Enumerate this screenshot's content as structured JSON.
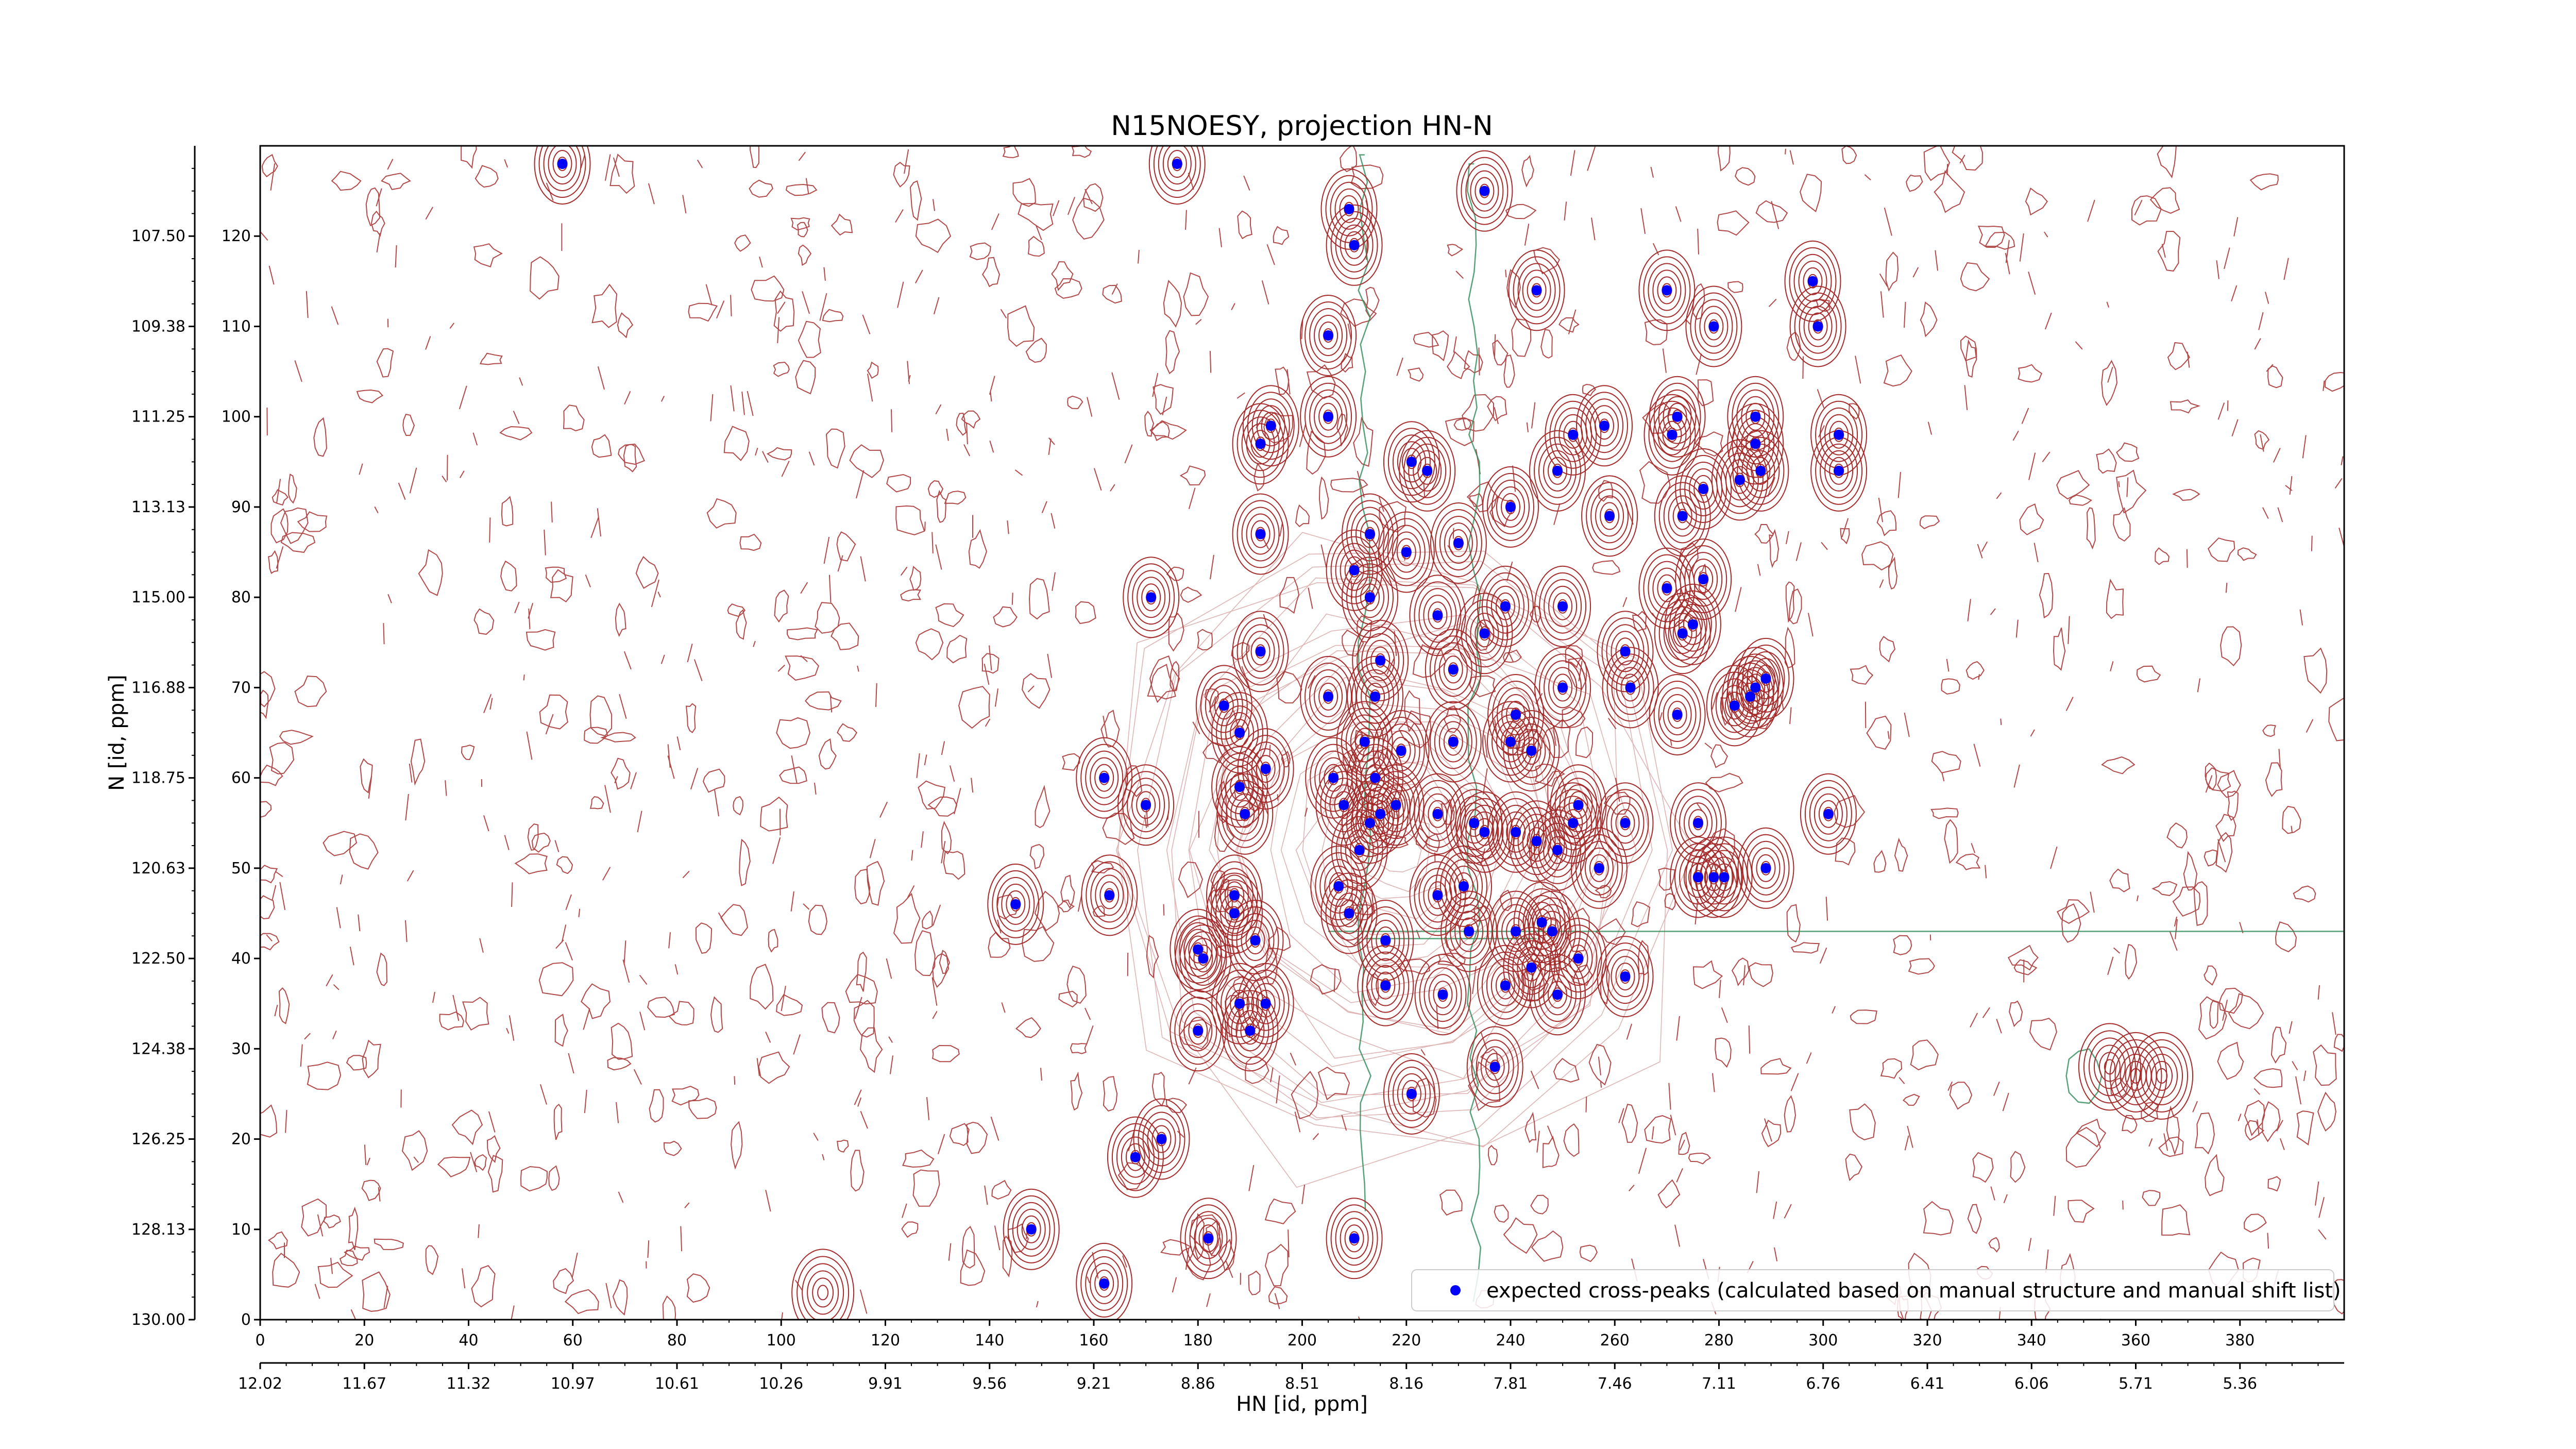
{
  "chart_data": {
    "type": "scatter",
    "title": "N15NOESY, projection HN-N",
    "xlabel": "HN [id, ppm]",
    "ylabel": "N [id, ppm]",
    "xlim": [
      0,
      400
    ],
    "ylim": [
      0,
      130
    ],
    "x_ticks": [
      0,
      20,
      40,
      60,
      80,
      100,
      120,
      140,
      160,
      180,
      200,
      220,
      240,
      260,
      280,
      300,
      320,
      340,
      360,
      380
    ],
    "y_ticks": [
      0,
      10,
      20,
      30,
      40,
      50,
      60,
      70,
      80,
      90,
      100,
      110,
      120
    ],
    "hn_ppm_ticks": [
      "12.02",
      "11.67",
      "11.32",
      "10.97",
      "10.61",
      "10.26",
      "9.91",
      "9.56",
      "9.21",
      "8.86",
      "8.51",
      "8.16",
      "7.81",
      "7.46",
      "7.11",
      "6.76",
      "6.41",
      "6.06",
      "5.71",
      "5.36"
    ],
    "n_ppm_ticks": [
      "130.00",
      "128.13",
      "126.25",
      "124.38",
      "122.50",
      "120.63",
      "118.75",
      "116.88",
      "115.00",
      "113.13",
      "111.25",
      "109.38",
      "107.50"
    ],
    "legend": {
      "label": "expected cross-peaks (calculated based on manual structure and manual shift list)",
      "position": "lower-right"
    },
    "colors": {
      "points": "#0000ff",
      "positive_contour": "#a52a2a",
      "negative_contour": "#2e8b57"
    },
    "grid": false,
    "series": [
      {
        "name": "expected cross-peaks (calculated based on manual structure and manual shift list)",
        "points": [
          [
            58,
            128
          ],
          [
            176,
            128
          ],
          [
            210,
            119
          ],
          [
            235,
            125
          ],
          [
            209,
            123
          ],
          [
            245,
            114
          ],
          [
            270,
            114
          ],
          [
            279,
            110
          ],
          [
            298,
            115
          ],
          [
            299,
            110
          ],
          [
            205,
            109
          ],
          [
            194,
            99
          ],
          [
            205,
            100
          ],
          [
            192,
            97
          ],
          [
            221,
            95
          ],
          [
            224,
            94
          ],
          [
            249,
            94
          ],
          [
            252,
            98
          ],
          [
            258,
            99
          ],
          [
            271,
            98
          ],
          [
            272,
            100
          ],
          [
            284,
            93
          ],
          [
            288,
            94
          ],
          [
            287,
            97
          ],
          [
            287,
            100
          ],
          [
            303,
            98
          ],
          [
            303,
            94
          ],
          [
            277,
            92
          ],
          [
            273,
            89
          ],
          [
            259,
            89
          ],
          [
            240,
            90
          ],
          [
            213,
            87
          ],
          [
            220,
            85
          ],
          [
            230,
            86
          ],
          [
            192,
            87
          ],
          [
            210,
            83
          ],
          [
            171,
            80
          ],
          [
            213,
            80
          ],
          [
            226,
            78
          ],
          [
            239,
            79
          ],
          [
            250,
            79
          ],
          [
            270,
            81
          ],
          [
            277,
            82
          ],
          [
            273,
            76
          ],
          [
            275,
            77
          ],
          [
            235,
            76
          ],
          [
            262,
            74
          ],
          [
            192,
            74
          ],
          [
            185,
            68
          ],
          [
            188,
            65
          ],
          [
            205,
            69
          ],
          [
            214,
            69
          ],
          [
            215,
            73
          ],
          [
            229,
            72
          ],
          [
            241,
            67
          ],
          [
            250,
            70
          ],
          [
            263,
            70
          ],
          [
            272,
            67
          ],
          [
            283,
            68
          ],
          [
            287,
            70
          ],
          [
            289,
            71
          ],
          [
            286,
            69
          ],
          [
            212,
            64
          ],
          [
            219,
            63
          ],
          [
            229,
            64
          ],
          [
            240,
            64
          ],
          [
            244,
            63
          ],
          [
            193,
            61
          ],
          [
            206,
            60
          ],
          [
            214,
            60
          ],
          [
            162,
            60
          ],
          [
            170,
            57
          ],
          [
            188,
            59
          ],
          [
            189,
            56
          ],
          [
            208,
            57
          ],
          [
            215,
            56
          ],
          [
            218,
            57
          ],
          [
            226,
            56
          ],
          [
            233,
            55
          ],
          [
            235,
            54
          ],
          [
            241,
            54
          ],
          [
            245,
            53
          ],
          [
            249,
            52
          ],
          [
            252,
            55
          ],
          [
            253,
            57
          ],
          [
            257,
            50
          ],
          [
            262,
            55
          ],
          [
            276,
            55
          ],
          [
            301,
            56
          ],
          [
            276,
            49
          ],
          [
            279,
            49
          ],
          [
            281,
            49
          ],
          [
            289,
            50
          ],
          [
            145,
            46
          ],
          [
            163,
            47
          ],
          [
            187,
            47
          ],
          [
            187,
            45
          ],
          [
            207,
            48
          ],
          [
            209,
            45
          ],
          [
            211,
            52
          ],
          [
            213,
            55
          ],
          [
            226,
            47
          ],
          [
            231,
            48
          ],
          [
            232,
            43
          ],
          [
            241,
            43
          ],
          [
            246,
            44
          ],
          [
            248,
            43
          ],
          [
            253,
            40
          ],
          [
            180,
            41
          ],
          [
            181,
            40
          ],
          [
            191,
            42
          ],
          [
            216,
            42
          ],
          [
            216,
            37
          ],
          [
            227,
            36
          ],
          [
            239,
            37
          ],
          [
            244,
            39
          ],
          [
            249,
            36
          ],
          [
            262,
            38
          ],
          [
            188,
            35
          ],
          [
            193,
            35
          ],
          [
            180,
            32
          ],
          [
            190,
            32
          ],
          [
            237,
            28
          ],
          [
            221,
            25
          ],
          [
            173,
            20
          ],
          [
            168,
            18
          ],
          [
            148,
            10
          ],
          [
            162,
            4
          ],
          [
            182,
            9
          ],
          [
            210,
            9
          ]
        ]
      }
    ]
  }
}
